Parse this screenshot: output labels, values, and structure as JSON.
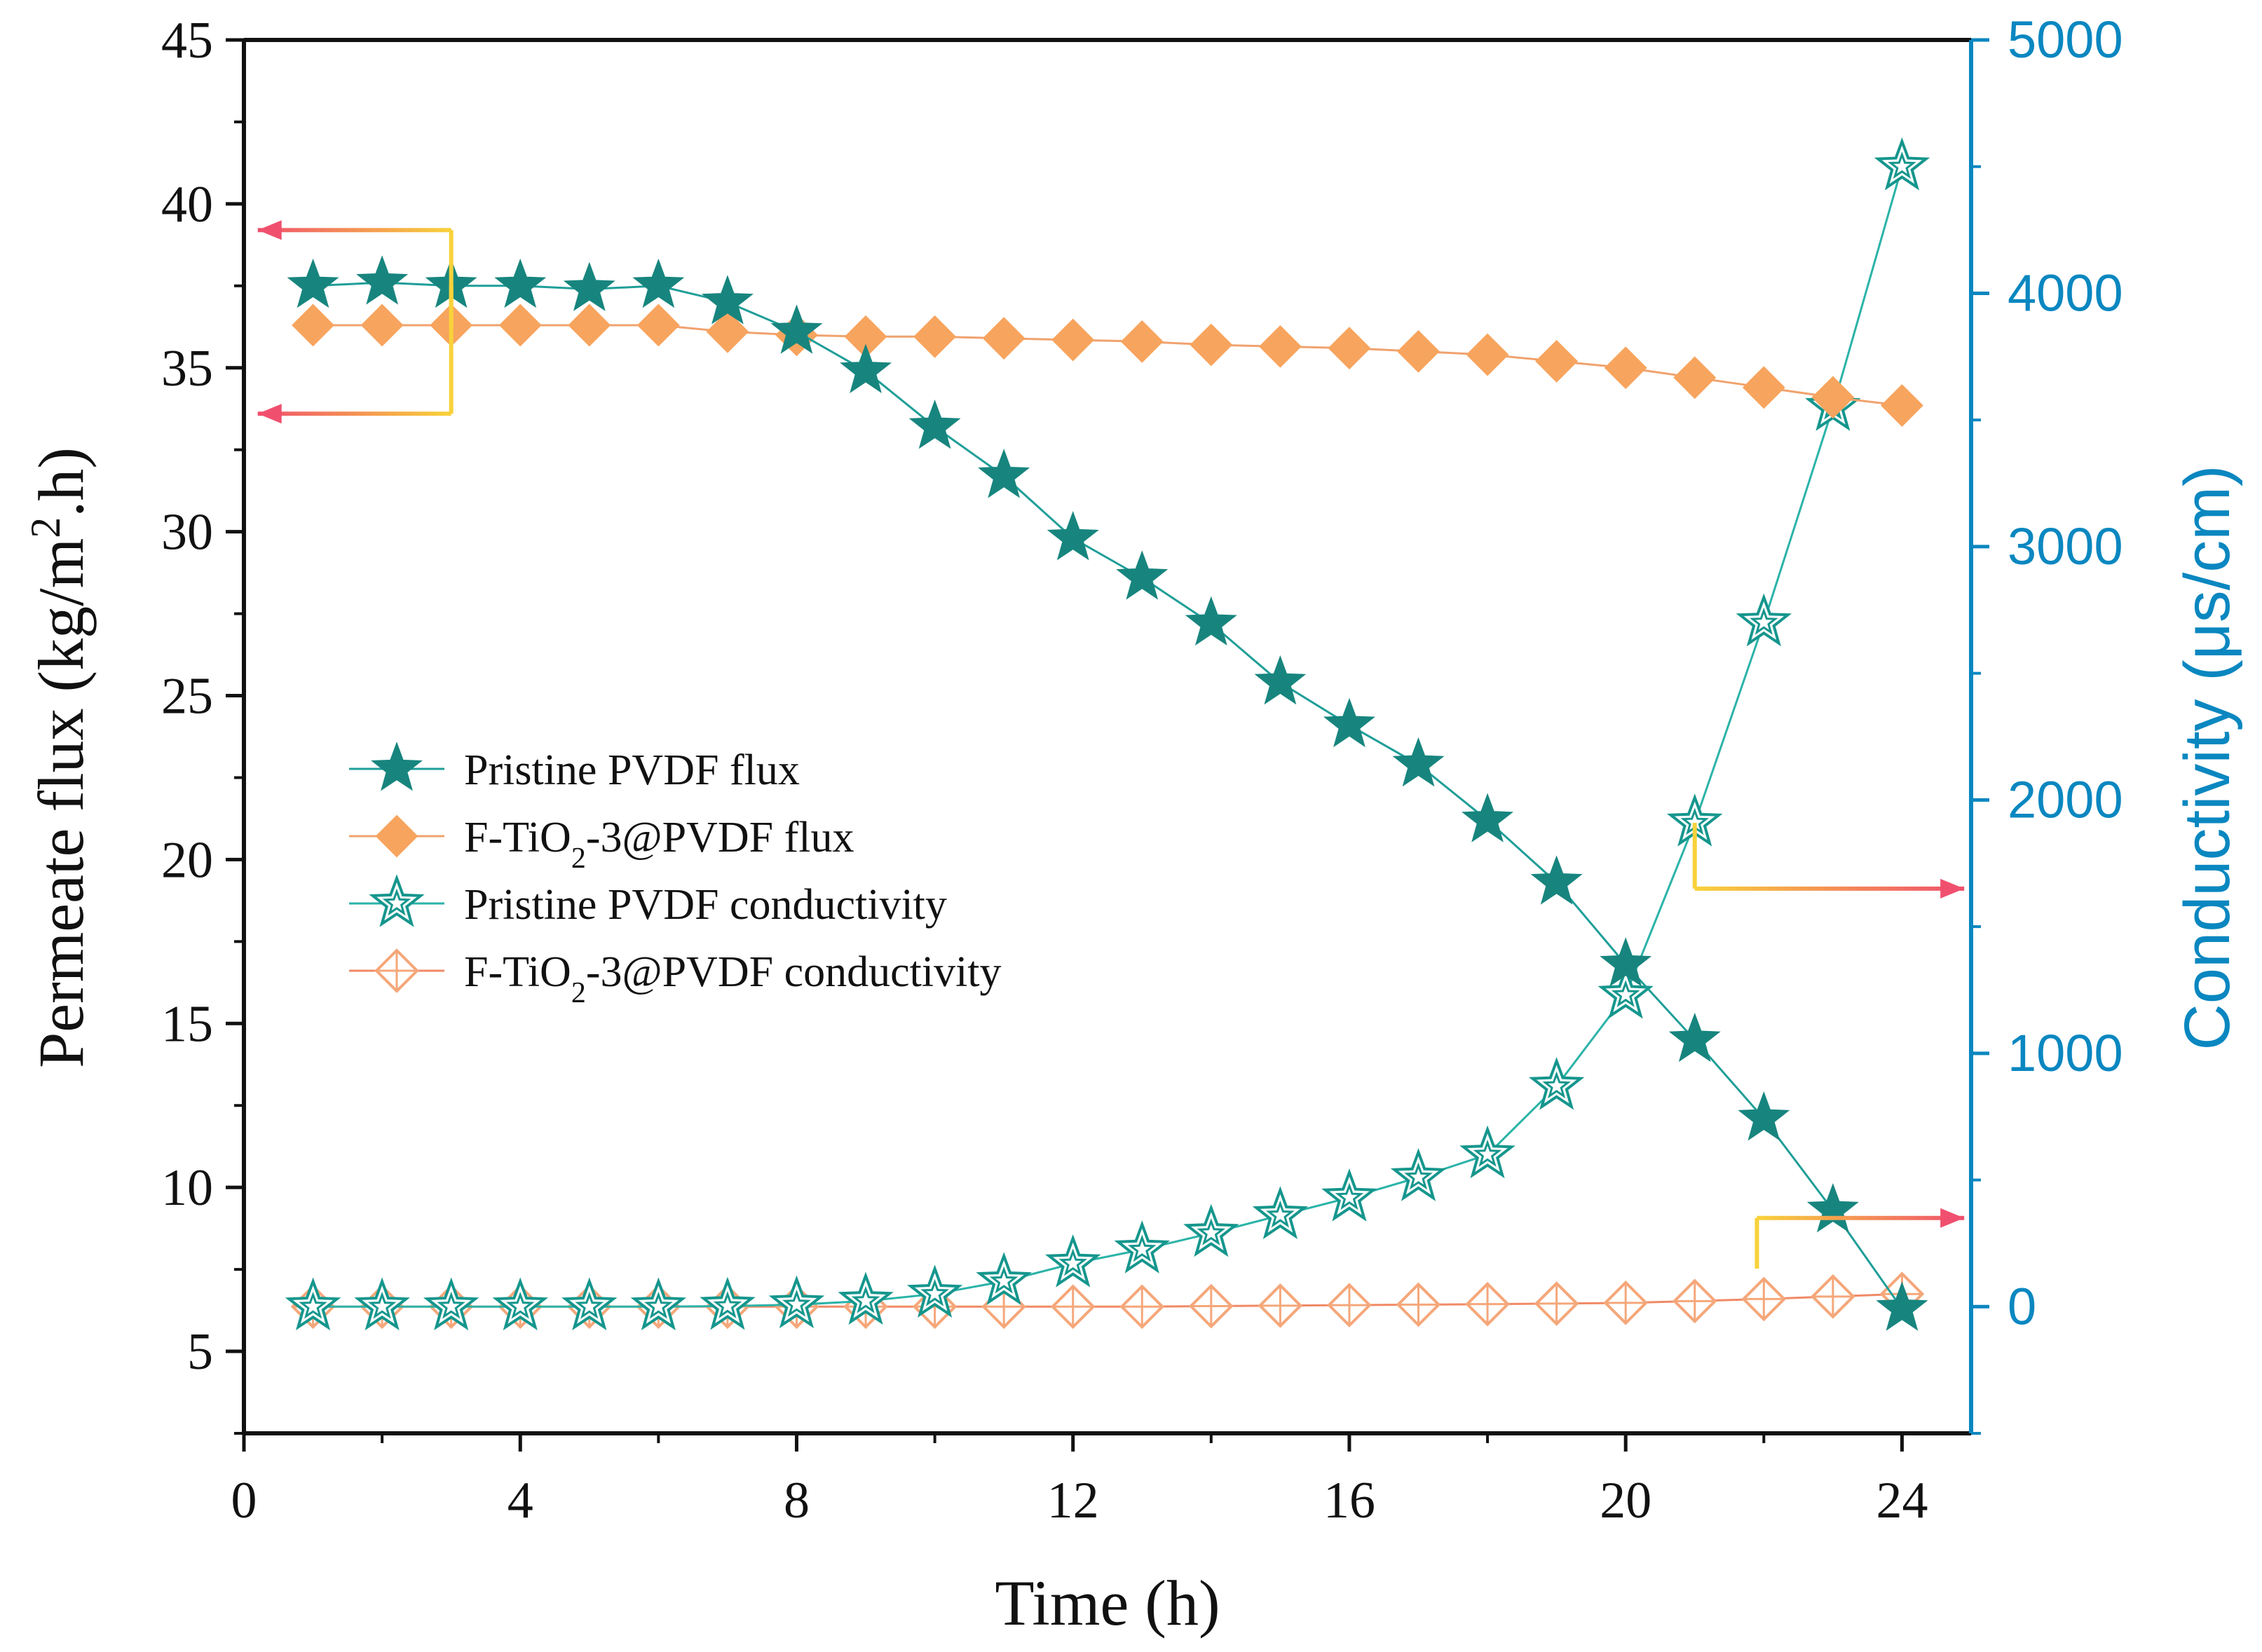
{
  "chart_data": {
    "type": "line",
    "title": "",
    "xlabel": "Time (h)",
    "ylabel": "Permeate flux (kg/m2.h)",
    "ylabel_parts": [
      "Permeate flux (kg/m",
      "2",
      ".h)"
    ],
    "y2label": "Conductivity (μs/cm)",
    "xlim": [
      0,
      25
    ],
    "ylim": [
      2.5,
      45
    ],
    "y2lim": [
      -500,
      5000
    ],
    "x_ticks": [
      "0",
      "4",
      "8",
      "12",
      "16",
      "20",
      "24"
    ],
    "x_tick_values": [
      0,
      4,
      8,
      12,
      16,
      20,
      24
    ],
    "y_ticks": [
      "5",
      "10",
      "15",
      "20",
      "25",
      "30",
      "35",
      "40",
      "45"
    ],
    "y_tick_values": [
      5,
      10,
      15,
      20,
      25,
      30,
      35,
      40,
      45
    ],
    "y2_ticks": [
      "0",
      "1000",
      "2000",
      "3000",
      "4000",
      "5000"
    ],
    "y2_tick_values": [
      0,
      1000,
      2000,
      3000,
      4000,
      5000
    ],
    "x": [
      1,
      2,
      3,
      4,
      5,
      6,
      7,
      8,
      9,
      10,
      11,
      12,
      13,
      14,
      15,
      16,
      17,
      18,
      19,
      20,
      21,
      22,
      23,
      24
    ],
    "series": [
      {
        "name": "Pristine PVDF flux",
        "name_parts": [
          "Pristine PVDF flux"
        ],
        "axis": "left",
        "marker": "star-filled",
        "line_color": "#1f9e98",
        "marker_color": "#17857e",
        "values": [
          37.5,
          37.6,
          37.5,
          37.5,
          37.4,
          37.5,
          37.0,
          36.1,
          34.9,
          33.2,
          31.7,
          29.8,
          28.6,
          27.2,
          25.4,
          24.1,
          22.9,
          21.2,
          19.3,
          16.8,
          14.5,
          12.1,
          9.3,
          6.3
        ]
      },
      {
        "name": "F-TiO2-3@PVDF flux",
        "name_parts": [
          "F-TiO",
          "2",
          "-3@PVDF flux"
        ],
        "axis": "left",
        "marker": "diamond-filled",
        "line_color": "#f0a26e",
        "marker_color": "#f7a45e",
        "values": [
          36.3,
          36.3,
          36.3,
          36.3,
          36.3,
          36.3,
          36.1,
          36.0,
          35.95,
          35.95,
          35.9,
          35.85,
          35.8,
          35.7,
          35.65,
          35.6,
          35.5,
          35.4,
          35.2,
          35.0,
          34.7,
          34.4,
          34.1,
          33.85
        ]
      },
      {
        "name": "Pristine PVDF conductivity",
        "name_parts": [
          "Pristine PVDF conductivity"
        ],
        "axis": "right",
        "marker": "star-open",
        "line_color": "#2bb3a8",
        "marker_color": "#15968d",
        "values": [
          0,
          0,
          0,
          0,
          0,
          0,
          2,
          8,
          22,
          50,
          100,
          170,
          225,
          290,
          360,
          430,
          510,
          600,
          870,
          1230,
          1910,
          2700,
          3550,
          4500
        ]
      },
      {
        "name": "F-TiO2-3@PVDF conductivity",
        "name_parts": [
          "F-TiO",
          "2",
          "-3@PVDF conductivity"
        ],
        "axis": "right",
        "marker": "diamond-open",
        "line_color": "#f08a66",
        "marker_color": "#f5a77a",
        "values": [
          0,
          0,
          0,
          0,
          0,
          0,
          0,
          0,
          0,
          0,
          0,
          0,
          0,
          2,
          4,
          6,
          8,
          10,
          12,
          15,
          22,
          30,
          40,
          50
        ]
      }
    ],
    "annotations": [
      {
        "name": "arrow-flux-top",
        "x_from": 3,
        "y_from": 36.3,
        "y_to": 39.2,
        "x_to": 0.2,
        "axis": "left"
      },
      {
        "name": "arrow-flux-bottom",
        "x_from": 3,
        "y_from": 37.5,
        "y_to": 33.6,
        "x_to": 0.2,
        "axis": "left"
      },
      {
        "name": "arrow-cond-upper",
        "x_from": 21,
        "y_from": 1910,
        "y_to": 1650,
        "x_to": 24.9,
        "axis": "right"
      },
      {
        "name": "arrow-cond-lower",
        "x_from": 21.9,
        "y_from": 150,
        "y_to": 350,
        "x_to": 24.9,
        "axis": "right"
      }
    ],
    "legend_position": "center-left",
    "grid": false,
    "colors": {
      "axis": "#111111",
      "right_axis": "#0a87c0",
      "arrow_start": "#f8d23a",
      "arrow_end": "#f0506e"
    }
  }
}
